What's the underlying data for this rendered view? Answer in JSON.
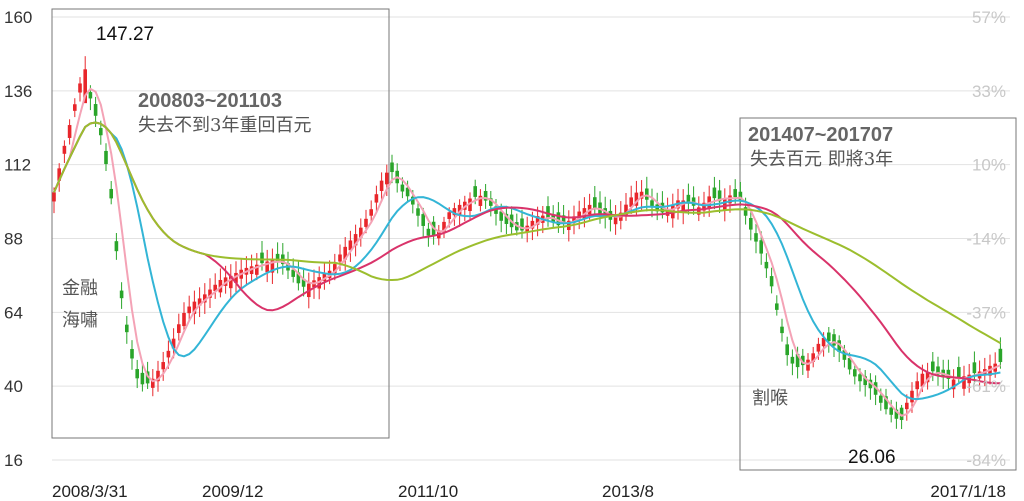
{
  "chart_data": {
    "type": "candlestick",
    "y_left_ticks": [
      "160",
      "136",
      "112",
      "88",
      "64",
      "40",
      "16"
    ],
    "y_left_range": [
      16,
      160
    ],
    "y_right_ticks": [
      "57%",
      "33%",
      "10%",
      "-14%",
      "-37%",
      "-61%",
      "-84%"
    ],
    "x_tick_labels": [
      "2008/3/31",
      "2009/12",
      "2011/10",
      "2013/8",
      "2017/1/18"
    ],
    "colors": {
      "up": "#e8262b",
      "down": "#2aa52a",
      "ma_pink": "#f4a3b6",
      "ma_cyan": "#33b5d6",
      "ma_magenta": "#d9336a",
      "ma_olive": "#9cbe2e",
      "box": "#777777",
      "grid": "#e2e2e2"
    },
    "annotations": {
      "peak_value": "147.27",
      "trough_value": "26.06",
      "box1_period": "200803~201103",
      "box1_text": "失去不到3年重回百元",
      "box2_period": "201407~201707",
      "box2_text": "失去百元 即將3年",
      "event1_line1": "金融",
      "event1_line2": "海嘯",
      "event2": "割喉"
    }
  }
}
